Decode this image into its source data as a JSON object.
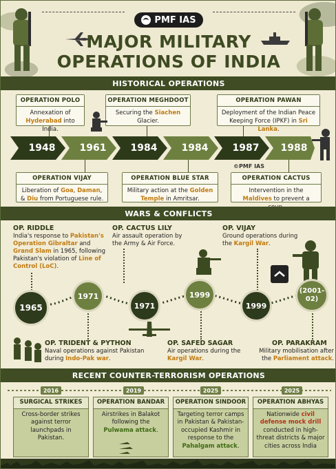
{
  "header": {
    "logo_text": "PMF IAS",
    "title_line1": "MAJOR MILITARY",
    "title_line2": "OPERATIONS OF INDIA"
  },
  "historical": {
    "band_label": "HISTORICAL OPERATIONS",
    "top_boxes": [
      {
        "title": "OPERATION POLO",
        "pre": "Annexation of ",
        "hl": "Hyderabad",
        "post": " into India."
      },
      {
        "title": "OPERATION MEGHDOOT",
        "pre": "Securing the ",
        "hl": "Siachen",
        "post": " Glacier."
      },
      {
        "title": "OPERATION PAWAN",
        "pre": "Deployment of the Indian Peace Keeping Force (IPKF) in ",
        "hl": "Sri Lanka",
        "post": "."
      }
    ],
    "years": [
      "1948",
      "1961",
      "1984",
      "1984",
      "1987",
      "1988"
    ],
    "watermark": "©PMF IAS",
    "bottom_boxes": [
      {
        "title": "OPERATION VIJAY",
        "pre": "Liberation of ",
        "hl1": "Goa",
        "mid1": ", ",
        "hl2": "Daman",
        "mid2": ", & ",
        "hl3": "Diu",
        "post": " from Portuguese rule."
      },
      {
        "title": "OPERATION BLUE STAR",
        "pre": "Military action at the ",
        "hl": "Golden Temple",
        "post": " in Amritsar."
      },
      {
        "title": "OPERATION CACTUS",
        "pre": "Intervention in the ",
        "hl": "Maldives",
        "post": " to prevent a coup."
      }
    ]
  },
  "wars": {
    "band_label": "WARS & CONFLICTS",
    "nodes": [
      "1965",
      "1971",
      "1971",
      "1999",
      "1999",
      "(2001-02)"
    ],
    "top_ops": [
      {
        "title": "OP. RIDDLE",
        "t1": "India's response to ",
        "h1": "Pakistan's Operation Gibraltar",
        "t2": " and ",
        "h2": "Grand Slam",
        "t3": " in 1965, following Pakistan's violation of ",
        "h3": "Line of Control (LoC)",
        "t4": "."
      },
      {
        "title": "OP. CACTUS LILY",
        "text": "Air assault operation by the Army & Air Force."
      },
      {
        "title": "OP. VIJAY",
        "pre": "Ground operations during the ",
        "hl": "Kargil War",
        "post": "."
      }
    ],
    "bottom_ops": [
      {
        "title": "OP. TRIDENT & PYTHON",
        "pre": "Naval operations against Pakistan during ",
        "hl": "Indo-Pak war",
        "post": "."
      },
      {
        "title": "OP. SAFED SAGAR",
        "pre": "Air operations during the ",
        "hl": "Kargil War",
        "post": "."
      },
      {
        "title": "OP. PARAKRAM",
        "pre": "Military mobilisation after the ",
        "hl": "Parliament attack",
        "post": "."
      }
    ]
  },
  "counter_terror": {
    "band_label": "RECENT COUNTER-TERRORISM OPERATIONS",
    "years": [
      "2016",
      "2019",
      "2025",
      "2025"
    ],
    "boxes": [
      {
        "title": "SURGICAL STRIKES",
        "text": "Cross-border strikes against terror launchpads in Pakistan."
      },
      {
        "title": "OPERATION BANDAR",
        "pre": "Airstrikes in Balakot following the ",
        "hl": "Pulwama attack",
        "post": "."
      },
      {
        "title": "OPERATION SINDOOR",
        "pre": "Targeting terror camps in Pakistan & Pakistan-occupied Kashmir in response to the ",
        "hl": "Pahalgam attack",
        "post": "."
      },
      {
        "title": "OPERATION ABHYAS",
        "pre": "Nationwide ",
        "hl": "civil defense mock drill",
        "post": " conducted in high-threat districts & major cities across India"
      }
    ]
  },
  "colors": {
    "dark_olive": "#3f4c24",
    "olive": "#6e8040",
    "highlight": "#c07a10",
    "red": "#b1331a"
  }
}
